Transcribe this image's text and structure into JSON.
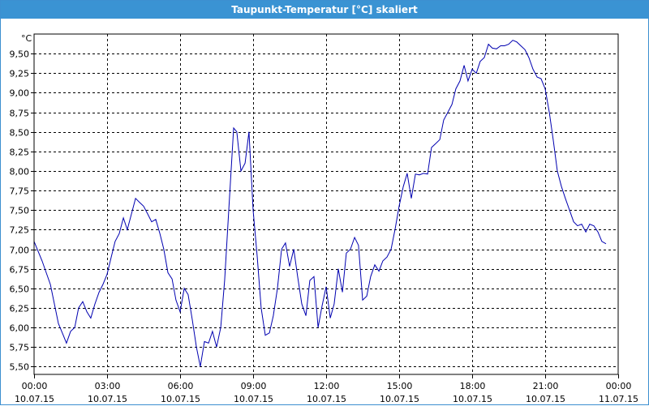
{
  "window": {
    "title": "Taupunkt-Temperatur [°C] skaliert"
  },
  "colors": {
    "titlebar": "#3a93d3",
    "line": "#0000b0",
    "grid": "#000000"
  },
  "chart_data": {
    "type": "line",
    "title": "Taupunkt-Temperatur [°C] skaliert",
    "unit_label": "°C",
    "xlabel": "",
    "ylabel": "",
    "x_hours_range": [
      0,
      24
    ],
    "ylim": [
      5.4,
      9.75
    ],
    "grid": true,
    "legend": "none",
    "y_ticks": [
      {
        "value": 5.5,
        "label": "5,50"
      },
      {
        "value": 5.75,
        "label": "5,75"
      },
      {
        "value": 6.0,
        "label": "6,00"
      },
      {
        "value": 6.25,
        "label": "6,25"
      },
      {
        "value": 6.5,
        "label": "6,50"
      },
      {
        "value": 6.75,
        "label": "6,75"
      },
      {
        "value": 7.0,
        "label": "7,00"
      },
      {
        "value": 7.25,
        "label": "7,25"
      },
      {
        "value": 7.5,
        "label": "7,50"
      },
      {
        "value": 7.75,
        "label": "7,75"
      },
      {
        "value": 8.0,
        "label": "8,00"
      },
      {
        "value": 8.25,
        "label": "8,25"
      },
      {
        "value": 8.5,
        "label": "8,50"
      },
      {
        "value": 8.75,
        "label": "8,75"
      },
      {
        "value": 9.0,
        "label": "9,00"
      },
      {
        "value": 9.25,
        "label": "9,25"
      },
      {
        "value": 9.5,
        "label": "9,50"
      }
    ],
    "x_ticks": [
      {
        "hour": 0,
        "time": "00:00",
        "date": "10.07.15"
      },
      {
        "hour": 3,
        "time": "03:00",
        "date": "10.07.15"
      },
      {
        "hour": 6,
        "time": "06:00",
        "date": "10.07.15"
      },
      {
        "hour": 9,
        "time": "09:00",
        "date": "10.07.15"
      },
      {
        "hour": 12,
        "time": "12:00",
        "date": "10.07.15"
      },
      {
        "hour": 15,
        "time": "15:00",
        "date": "10.07.15"
      },
      {
        "hour": 18,
        "time": "18:00",
        "date": "10.07.15"
      },
      {
        "hour": 21,
        "time": "21:00",
        "date": "10.07.15"
      },
      {
        "hour": 24,
        "time": "00:00",
        "date": "11.07.15"
      }
    ],
    "series": [
      {
        "points": [
          [
            0.0,
            7.1
          ],
          [
            0.33,
            6.85
          ],
          [
            0.67,
            6.55
          ],
          [
            1.0,
            6.05
          ],
          [
            1.2,
            5.9
          ],
          [
            1.33,
            5.8
          ],
          [
            1.5,
            5.95
          ],
          [
            1.67,
            6.0
          ],
          [
            1.83,
            6.25
          ],
          [
            2.0,
            6.33
          ],
          [
            2.17,
            6.2
          ],
          [
            2.33,
            6.12
          ],
          [
            2.5,
            6.3
          ],
          [
            2.67,
            6.45
          ],
          [
            2.83,
            6.55
          ],
          [
            3.0,
            6.68
          ],
          [
            3.17,
            6.9
          ],
          [
            3.33,
            7.1
          ],
          [
            3.5,
            7.2
          ],
          [
            3.67,
            7.4
          ],
          [
            3.83,
            7.25
          ],
          [
            4.0,
            7.45
          ],
          [
            4.17,
            7.65
          ],
          [
            4.33,
            7.6
          ],
          [
            4.5,
            7.55
          ],
          [
            4.67,
            7.45
          ],
          [
            4.83,
            7.35
          ],
          [
            5.0,
            7.38
          ],
          [
            5.17,
            7.2
          ],
          [
            5.33,
            7.0
          ],
          [
            5.5,
            6.7
          ],
          [
            5.67,
            6.62
          ],
          [
            5.83,
            6.35
          ],
          [
            6.0,
            6.2
          ],
          [
            6.17,
            6.5
          ],
          [
            6.33,
            6.42
          ],
          [
            6.5,
            6.1
          ],
          [
            6.67,
            5.75
          ],
          [
            6.83,
            5.5
          ],
          [
            7.0,
            5.82
          ],
          [
            7.17,
            5.8
          ],
          [
            7.33,
            5.95
          ],
          [
            7.5,
            5.75
          ],
          [
            7.67,
            6.0
          ],
          [
            7.83,
            6.6
          ],
          [
            8.0,
            7.5
          ],
          [
            8.2,
            8.55
          ],
          [
            8.33,
            8.5
          ],
          [
            8.5,
            8.0
          ],
          [
            8.67,
            8.1
          ],
          [
            8.83,
            8.5
          ],
          [
            9.0,
            7.5
          ],
          [
            9.17,
            6.9
          ],
          [
            9.33,
            6.25
          ],
          [
            9.5,
            5.9
          ],
          [
            9.67,
            5.93
          ],
          [
            9.83,
            6.15
          ],
          [
            10.0,
            6.5
          ],
          [
            10.17,
            7.0
          ],
          [
            10.33,
            7.08
          ],
          [
            10.5,
            6.78
          ],
          [
            10.67,
            7.0
          ],
          [
            10.83,
            6.65
          ],
          [
            11.0,
            6.3
          ],
          [
            11.17,
            6.15
          ],
          [
            11.33,
            6.6
          ],
          [
            11.5,
            6.65
          ],
          [
            11.67,
            6.0
          ],
          [
            11.83,
            6.27
          ],
          [
            12.0,
            6.52
          ],
          [
            12.17,
            6.12
          ],
          [
            12.33,
            6.3
          ],
          [
            12.5,
            6.75
          ],
          [
            12.67,
            6.45
          ],
          [
            12.83,
            6.95
          ],
          [
            13.0,
            7.0
          ],
          [
            13.17,
            7.15
          ],
          [
            13.33,
            7.05
          ],
          [
            13.5,
            6.35
          ],
          [
            13.67,
            6.4
          ],
          [
            13.83,
            6.65
          ],
          [
            14.0,
            6.8
          ],
          [
            14.17,
            6.72
          ],
          [
            14.33,
            6.85
          ],
          [
            14.5,
            6.9
          ],
          [
            14.67,
            7.0
          ],
          [
            14.83,
            7.25
          ],
          [
            15.0,
            7.55
          ],
          [
            15.17,
            7.8
          ],
          [
            15.33,
            7.97
          ],
          [
            15.5,
            7.65
          ],
          [
            15.67,
            7.96
          ],
          [
            15.83,
            7.95
          ],
          [
            16.0,
            7.97
          ],
          [
            16.17,
            7.96
          ],
          [
            16.33,
            8.3
          ],
          [
            16.5,
            8.35
          ],
          [
            16.67,
            8.4
          ],
          [
            16.83,
            8.65
          ],
          [
            17.0,
            8.75
          ],
          [
            17.17,
            8.85
          ],
          [
            17.33,
            9.05
          ],
          [
            17.5,
            9.15
          ],
          [
            17.67,
            9.35
          ],
          [
            17.83,
            9.15
          ],
          [
            18.0,
            9.3
          ],
          [
            18.17,
            9.25
          ],
          [
            18.33,
            9.4
          ],
          [
            18.5,
            9.45
          ],
          [
            18.67,
            9.62
          ],
          [
            18.83,
            9.57
          ],
          [
            19.0,
            9.56
          ],
          [
            19.17,
            9.6
          ],
          [
            19.33,
            9.6
          ],
          [
            19.5,
            9.62
          ],
          [
            19.67,
            9.67
          ],
          [
            19.83,
            9.65
          ],
          [
            20.0,
            9.6
          ],
          [
            20.17,
            9.55
          ],
          [
            20.33,
            9.45
          ],
          [
            20.5,
            9.3
          ],
          [
            20.67,
            9.2
          ],
          [
            20.83,
            9.18
          ],
          [
            21.0,
            9.05
          ],
          [
            21.17,
            8.75
          ],
          [
            21.33,
            8.4
          ],
          [
            21.5,
            8.0
          ],
          [
            21.67,
            7.8
          ],
          [
            21.83,
            7.65
          ],
          [
            22.0,
            7.5
          ],
          [
            22.17,
            7.35
          ],
          [
            22.33,
            7.3
          ],
          [
            22.5,
            7.32
          ],
          [
            22.67,
            7.22
          ],
          [
            22.83,
            7.32
          ],
          [
            23.0,
            7.3
          ],
          [
            23.17,
            7.22
          ],
          [
            23.33,
            7.1
          ],
          [
            23.5,
            7.07
          ]
        ]
      }
    ]
  }
}
